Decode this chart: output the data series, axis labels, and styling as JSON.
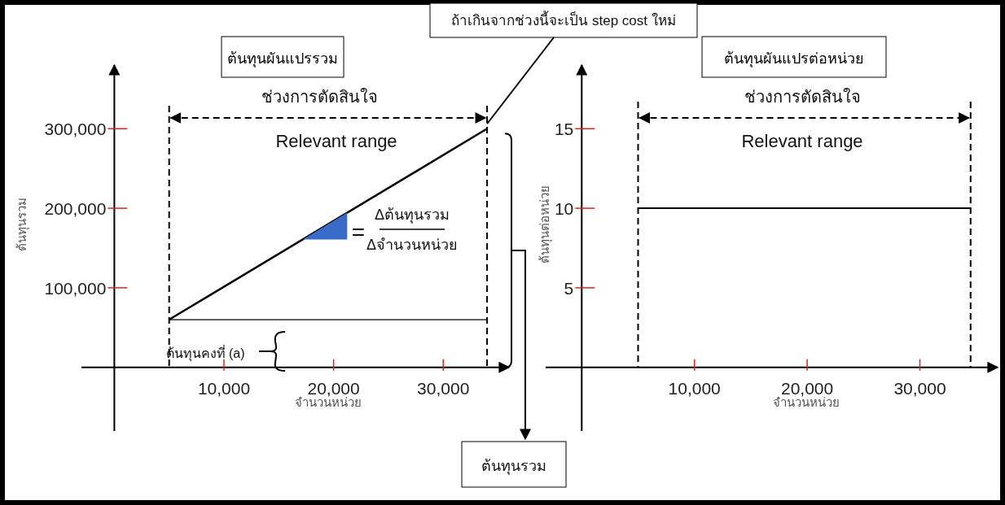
{
  "chart_data": [
    {
      "type": "line",
      "title": "ต้นทุนผันแปรรวม",
      "xlabel": "จำนวนหน่วย",
      "ylabel": "ต้นทุนรวม",
      "xlim": [
        -3000,
        36000
      ],
      "ylim": [
        -80000,
        380000
      ],
      "xticks": [
        {
          "value": 10000,
          "label": "10,000"
        },
        {
          "value": 20000,
          "label": "20,000"
        },
        {
          "value": 30000,
          "label": "30,000"
        }
      ],
      "yticks": [
        {
          "value": 100000,
          "label": "100,000"
        },
        {
          "value": 200000,
          "label": "200,000"
        },
        {
          "value": 300000,
          "label": "300,000"
        }
      ],
      "line_style": "solid",
      "series": [
        {
          "color": "#000000",
          "x": [
            5000,
            34000
          ],
          "values": [
            60000,
            300000
          ]
        },
        {
          "color": "#000000",
          "x": [
            5000,
            34000
          ],
          "values": [
            60000,
            60000
          ]
        }
      ],
      "ref_lines": [
        {
          "axis": "x",
          "value": 5000,
          "line_style": "dashed",
          "color": "#000000"
        },
        {
          "axis": "x",
          "value": 34000,
          "line_style": "dashed",
          "color": "#000000"
        }
      ],
      "annotations": [
        "ช่วงการตัดสินใจ",
        "Relevant range",
        {
          "text": "ถ้าเกินจากช่วงนี้จะเป็น step cost ใหม่",
          "x": 34000,
          "y": 300000
        },
        "ต้นทุนคงที่ (a)",
        "ต้นทุนรวม",
        "=",
        "Δต้นทุนรวม",
        "Δจำนวนหน่วย"
      ]
    },
    {
      "type": "line",
      "title": "ต้นทุนผันแปรต่อหน่วย",
      "xlabel": "จำนวนหน่วย",
      "ylabel": "ต้นทุนต่อหน่วย",
      "xlim": [
        -3200,
        36900
      ],
      "ylim": [
        -4,
        19
      ],
      "xticks": [
        {
          "value": 10000,
          "label": "10,000"
        },
        {
          "value": 20000,
          "label": "20,000"
        },
        {
          "value": 30000,
          "label": "30,000"
        }
      ],
      "yticks": [
        5,
        10,
        15
      ],
      "line_style": "solid",
      "series": [
        {
          "color": "#000000",
          "x": [
            5000,
            34500
          ],
          "values": [
            10,
            10
          ]
        }
      ],
      "ref_lines": [
        {
          "axis": "x",
          "value": 5000,
          "line_style": "dashed",
          "color": "#000000"
        },
        {
          "axis": "x",
          "value": 34500,
          "line_style": "dashed",
          "color": "#000000"
        }
      ],
      "annotations": [
        "ช่วงการตัดสินใจ",
        "Relevant range"
      ]
    }
  ]
}
